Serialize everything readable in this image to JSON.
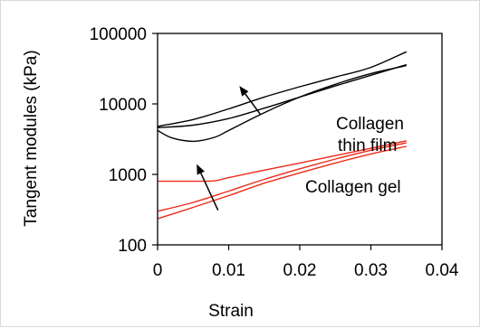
{
  "chart_data": {
    "type": "line",
    "title": "",
    "xlabel": "Strain",
    "ylabel": "Tangent modules (kPa)",
    "xlim": [
      0,
      0.04
    ],
    "ylim": [
      100,
      100000
    ],
    "yscale": "log",
    "grid": false,
    "legend": "none",
    "x_ticks": [
      0,
      0.01,
      0.02,
      0.03,
      0.04
    ],
    "x_tick_labels": [
      "0",
      "0.01",
      "0.02",
      "0.03",
      "0.04"
    ],
    "y_ticks": [
      100,
      1000,
      10000,
      100000
    ],
    "y_tick_labels": [
      "100",
      "1000",
      "10000",
      "100000"
    ],
    "series": [
      {
        "group": "film",
        "color": "#000000",
        "x": [
          0,
          0.005,
          0.01,
          0.015,
          0.02,
          0.025,
          0.03,
          0.035
        ],
        "y": [
          4800,
          6000,
          8500,
          12500,
          17500,
          24000,
          33000,
          55000
        ]
      },
      {
        "group": "film",
        "color": "#000000",
        "x": [
          0,
          0.005,
          0.01,
          0.015,
          0.02,
          0.025,
          0.03,
          0.035
        ],
        "y": [
          4600,
          5000,
          6200,
          8700,
          12500,
          18000,
          25500,
          36000
        ]
      },
      {
        "group": "film",
        "color": "#000000",
        "x": [
          0,
          0.002,
          0.005,
          0.008,
          0.01,
          0.015,
          0.02,
          0.025,
          0.03,
          0.035
        ],
        "y": [
          4200,
          3300,
          2950,
          3350,
          4200,
          7500,
          12500,
          19000,
          27000,
          35000
        ]
      },
      {
        "group": "gel",
        "color": "#ee2a1a",
        "x": [
          0,
          0.005,
          0.008,
          0.01,
          0.015,
          0.02,
          0.025,
          0.03,
          0.035
        ],
        "y": [
          800,
          800,
          810,
          900,
          1150,
          1450,
          1850,
          2350,
          3000
        ]
      },
      {
        "group": "gel",
        "color": "#ee2a1a",
        "x": [
          0,
          0.005,
          0.01,
          0.015,
          0.02,
          0.025,
          0.03,
          0.035
        ],
        "y": [
          300,
          400,
          580,
          850,
          1200,
          1650,
          2200,
          2800
        ]
      },
      {
        "group": "gel",
        "color": "#ee2a1a",
        "x": [
          0,
          0.005,
          0.01,
          0.015,
          0.02,
          0.025,
          0.03,
          0.035
        ],
        "y": [
          235,
          340,
          500,
          750,
          1050,
          1450,
          1950,
          2500
        ]
      }
    ],
    "annotations": [
      {
        "id": "film_line1",
        "text": "Collagen"
      },
      {
        "id": "film_line2",
        "text": "thin film"
      },
      {
        "id": "gel",
        "text": "Collagen gel"
      }
    ],
    "arrows": [
      {
        "from": [
          0.0145,
          7000
        ],
        "to": [
          0.0115,
          18000
        ]
      },
      {
        "from": [
          0.0085,
          310
        ],
        "to": [
          0.0055,
          1400
        ]
      }
    ]
  }
}
